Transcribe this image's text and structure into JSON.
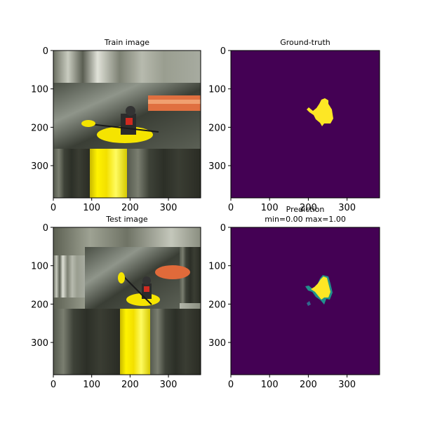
{
  "chart_data": [
    {
      "type": "image",
      "title": "Train image",
      "xticks": [
        0,
        100,
        200,
        300
      ],
      "yticks": [
        0,
        100,
        200,
        300
      ],
      "xlim": [
        0,
        384
      ],
      "ylim": [
        384,
        0
      ]
    },
    {
      "type": "heatmap",
      "title": "Ground-truth",
      "xticks": [
        0,
        100,
        200,
        300
      ],
      "yticks": [
        0,
        100,
        200,
        300
      ],
      "xlim": [
        0,
        384
      ],
      "ylim": [
        384,
        0
      ],
      "colormap": "viridis"
    },
    {
      "type": "image",
      "title": "Test image",
      "xticks": [
        0,
        100,
        200,
        300
      ],
      "yticks": [
        0,
        100,
        200,
        300
      ],
      "xlim": [
        0,
        384
      ],
      "ylim": [
        384,
        0
      ]
    },
    {
      "type": "heatmap",
      "title": "Prediction",
      "subtitle": "min=0.00 max=1.00",
      "xticks": [
        0,
        100,
        200,
        300
      ],
      "yticks": [
        0,
        100,
        200,
        300
      ],
      "xlim": [
        0,
        384
      ],
      "ylim": [
        384,
        0
      ],
      "colormap": "viridis",
      "value_range": [
        0.0,
        1.0
      ]
    }
  ],
  "colors": {
    "viridis_low": "#440154",
    "viridis_high": "#fde725",
    "viridis_mid": "#21918c",
    "kayak_yellow": "#f5e400",
    "water_dark": "#2a2c24"
  }
}
